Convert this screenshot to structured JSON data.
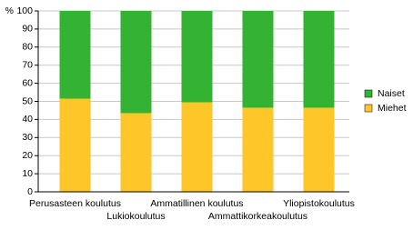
{
  "chart_data": {
    "type": "stacked-bar",
    "y_label": "%",
    "categories": [
      "Perusasteen koulutus",
      "Lukiokoulutus",
      "Ammatillinen koulutus",
      "Ammattikorkeakoulutus",
      "Yliopistokoulutus"
    ],
    "series": [
      {
        "name": "Miehet",
        "color": "#ffc629",
        "values": [
          51.5,
          43.5,
          49.5,
          46.5,
          46.5
        ]
      },
      {
        "name": "Naiset",
        "color": "#33b233",
        "values": [
          48.5,
          56.5,
          50.5,
          53.5,
          53.5
        ]
      }
    ],
    "ylim": [
      0,
      100
    ],
    "yticks": [
      0,
      10,
      20,
      30,
      40,
      50,
      60,
      70,
      80,
      90,
      100
    ],
    "grid": true,
    "legend": "right"
  }
}
